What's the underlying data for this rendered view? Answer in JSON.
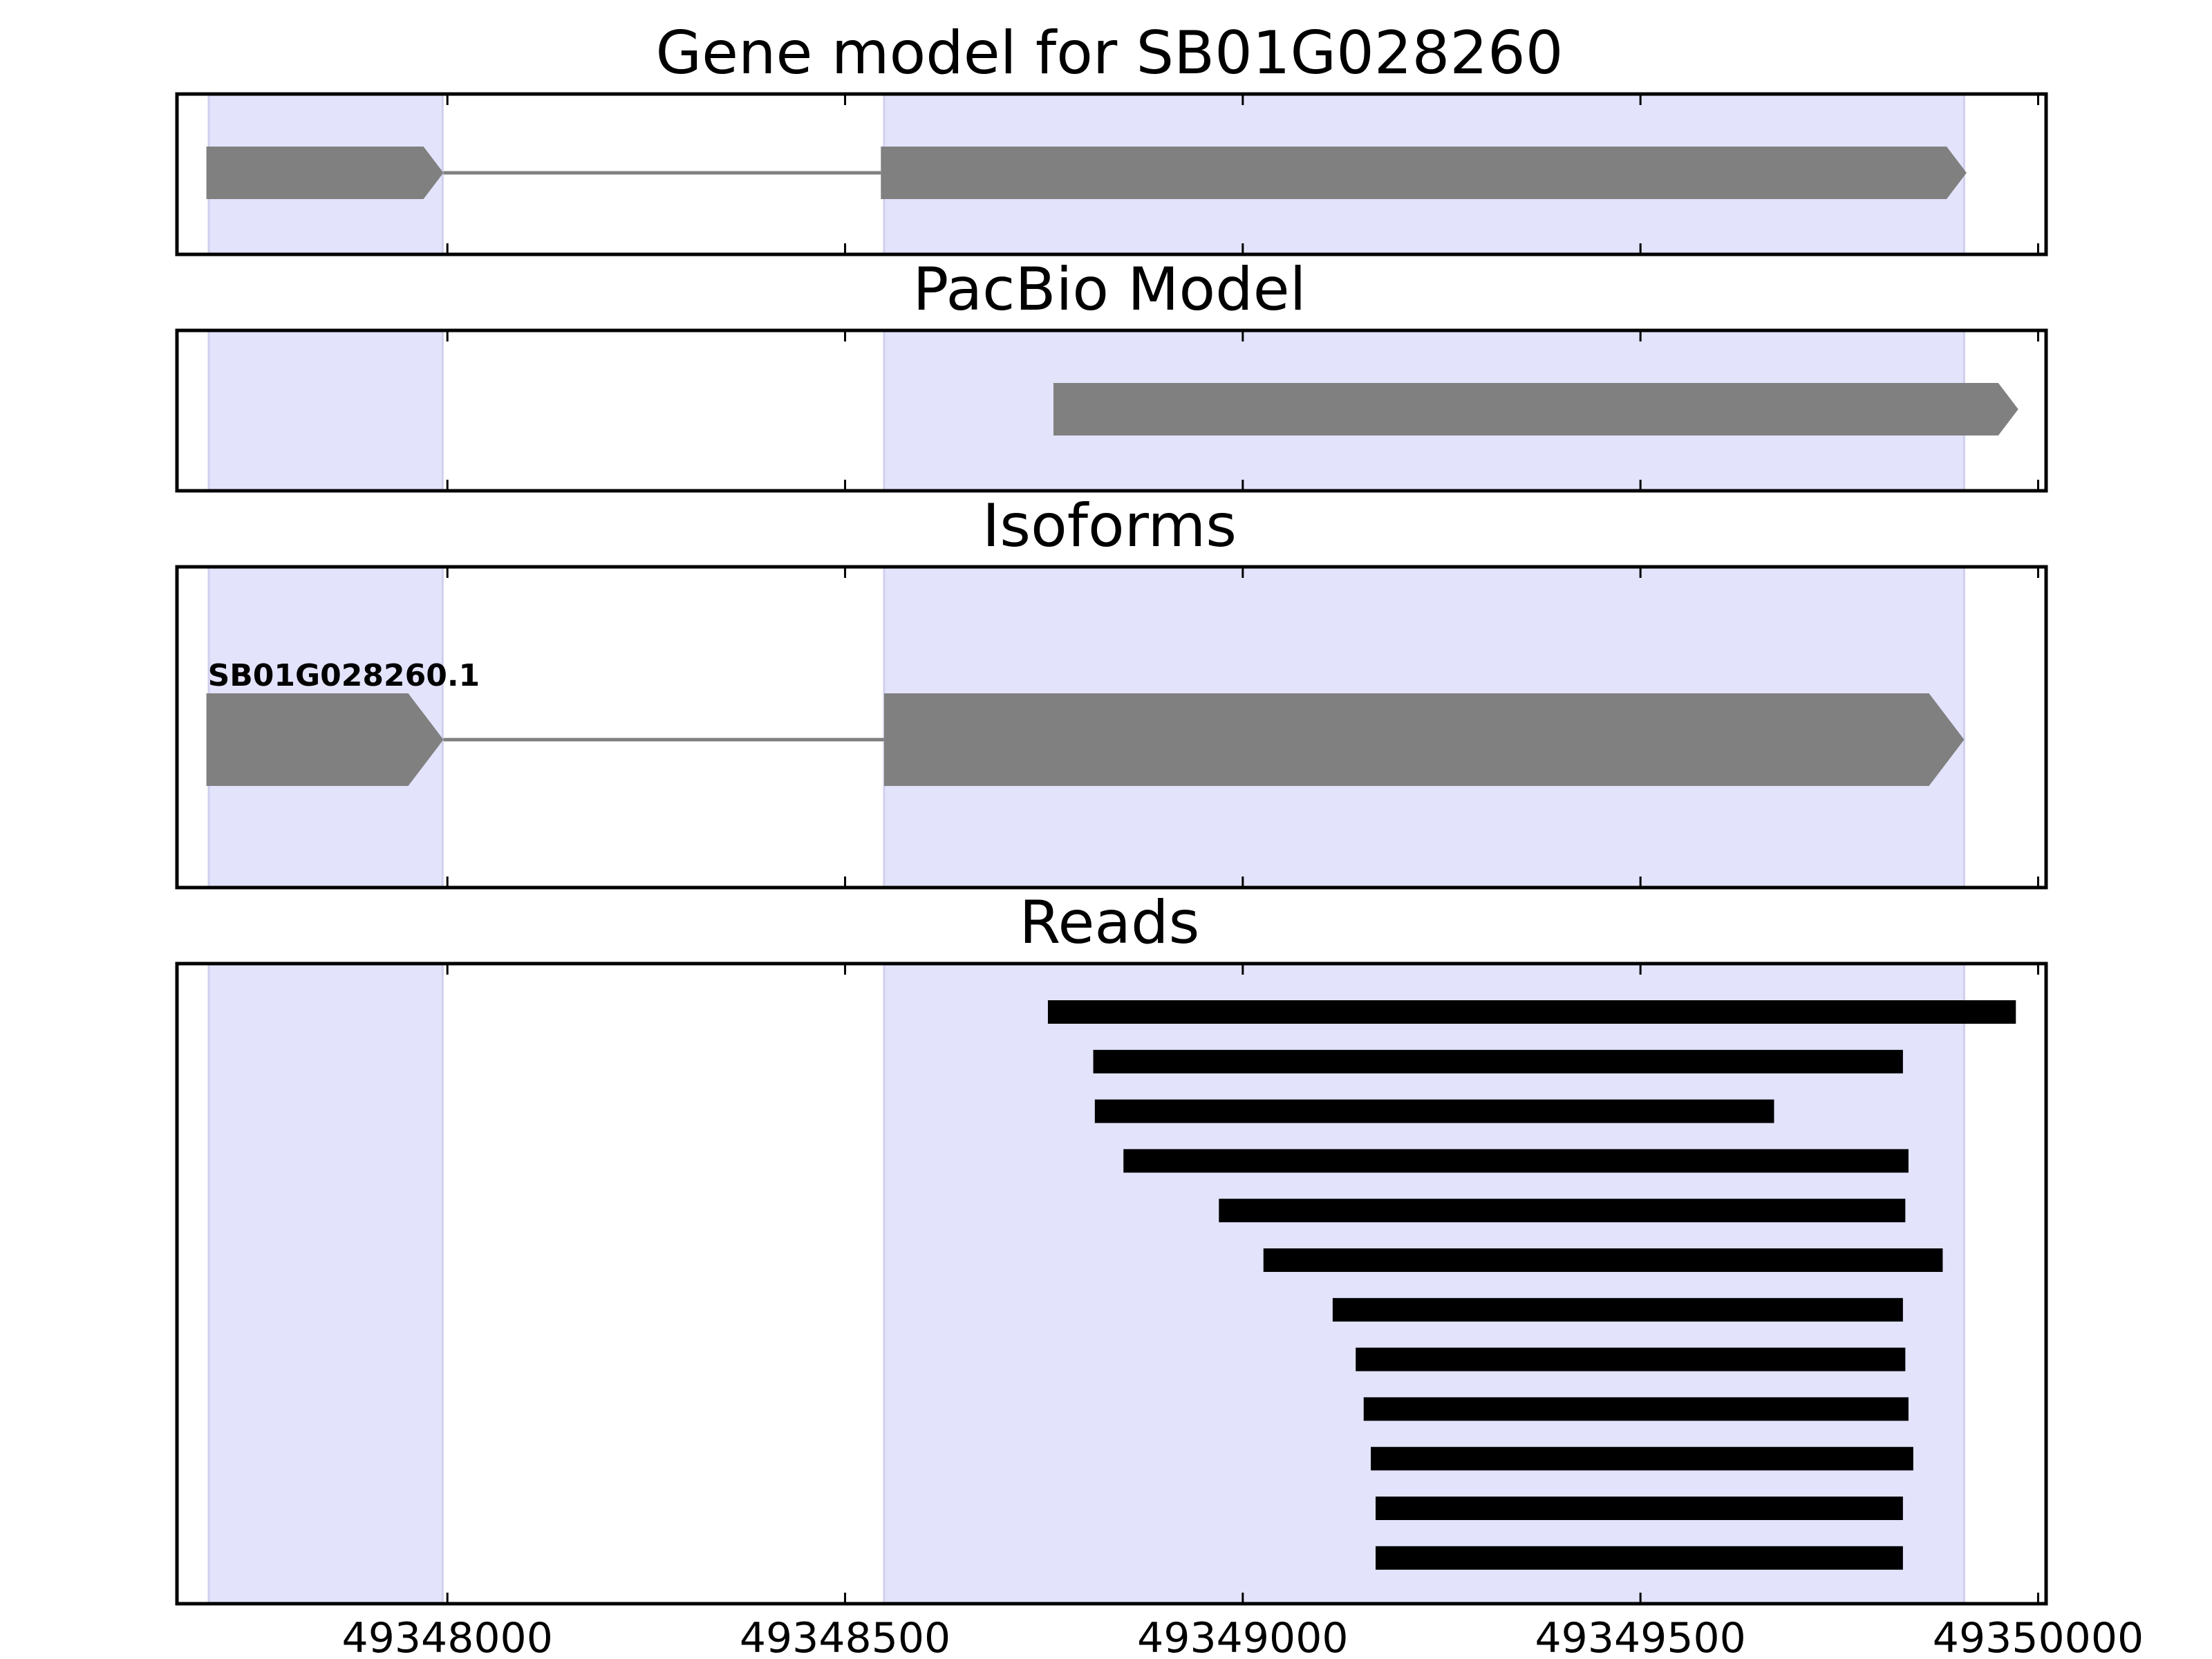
{
  "chart_data": {
    "type": "gene-model-track",
    "title": "Gene model for SB01G028260",
    "xlim": [
      49347660,
      49350010
    ],
    "x_ticks": [
      49348000,
      49348500,
      49349000,
      49349500,
      49350000
    ],
    "x_tick_labels": [
      "49348000",
      "49348500",
      "49349000",
      "49349500",
      "49350000"
    ],
    "grid": false,
    "highlight_color": "#e3e3fc",
    "feature_color": "#808080",
    "read_color": "#000000",
    "highlight_regions": [
      {
        "start": 49347700,
        "end": 49347994
      },
      {
        "start": 49348549,
        "end": 49349907
      }
    ],
    "panels": [
      {
        "title": "Gene model for SB01G028260",
        "features": [
          {
            "label": "",
            "strand": "+",
            "exons": [
              [
                49347697,
                49347995
              ],
              [
                49348545,
                49349910
              ]
            ]
          }
        ]
      },
      {
        "title": "PacBio Model",
        "features": [
          {
            "label": "",
            "strand": "+",
            "exons": [
              [
                49348762,
                49349975
              ]
            ]
          }
        ]
      },
      {
        "title": "Isoforms",
        "features": [
          {
            "label": "SB01G028260.1",
            "strand": "+",
            "exons": [
              [
                49347697,
                49347995
              ],
              [
                49348549,
                49349907
              ]
            ]
          }
        ]
      },
      {
        "title": "Reads",
        "reads": [
          [
            49348755,
            49349972
          ],
          [
            49348812,
            49349830
          ],
          [
            49348814,
            49349668
          ],
          [
            49348850,
            49349837
          ],
          [
            49348970,
            49349833
          ],
          [
            49349026,
            49349880
          ],
          [
            49349113,
            49349830
          ],
          [
            49349142,
            49349833
          ],
          [
            49349152,
            49349837
          ],
          [
            49349161,
            49349843
          ],
          [
            49349167,
            49349830
          ],
          [
            49349167,
            49349830
          ]
        ]
      }
    ]
  }
}
